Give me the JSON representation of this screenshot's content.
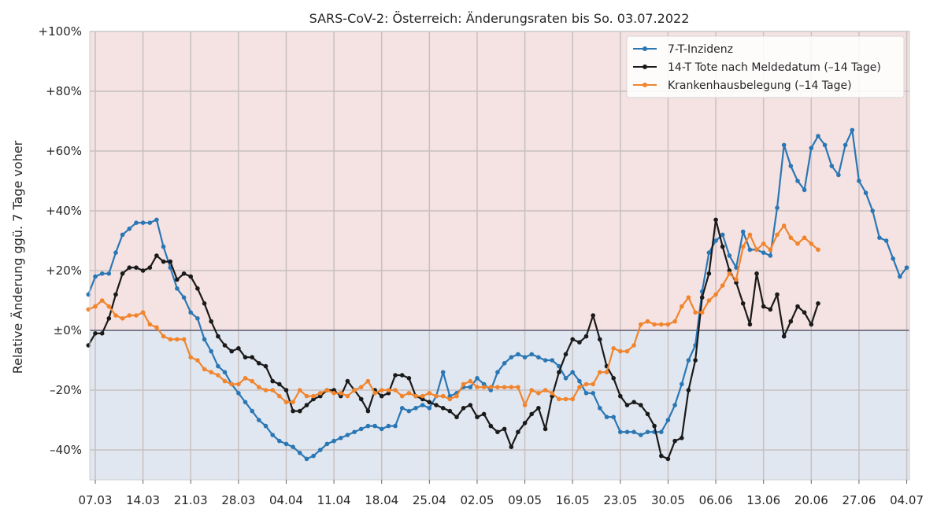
{
  "chart_data": {
    "type": "line",
    "title": "SARS-CoV-2: Österreich: Änderungsraten bis So. 03.07.2022",
    "ylabel": "Relative Änderung ggü. 7 Tage voher",
    "xlabel": "",
    "x_ticks": [
      "07.03",
      "14.03",
      "21.03",
      "28.03",
      "04.04",
      "11.04",
      "18.04",
      "25.04",
      "02.05",
      "09.05",
      "16.05",
      "23.05",
      "30.05",
      "06.06",
      "13.06",
      "20.06",
      "27.06",
      "04.07"
    ],
    "y_ticks": [
      "+100%",
      "+80%",
      "+60%",
      "+40%",
      "+20%",
      "±0%",
      "–20%",
      "–40%"
    ],
    "y_tick_values": [
      100,
      80,
      60,
      40,
      20,
      0,
      -20,
      -40
    ],
    "ylim": [
      -50,
      100
    ],
    "x_start_label": "06.03",
    "legend_position": "top-right",
    "grid": true,
    "background": {
      "positive": "#f5e2e2",
      "negative": "#e1e7f0",
      "zero_line": "#7c7c8a"
    },
    "series": [
      {
        "name": "7-T-Inzidenz",
        "color": "#2a77b4",
        "values": [
          12,
          18,
          19,
          19,
          26,
          32,
          34,
          36,
          36,
          36,
          37,
          28,
          21,
          14,
          11,
          6,
          4,
          -3,
          -7,
          -12,
          -14,
          -18,
          -21,
          -24,
          -27,
          -30,
          -32,
          -35,
          -37,
          -38,
          -39,
          -41,
          -43,
          -42,
          -40,
          -38,
          -37,
          -36,
          -35,
          -34,
          -33,
          -32,
          -32,
          -33,
          -32,
          -32,
          -26,
          -27,
          -26,
          -25,
          -26,
          -22,
          -14,
          -22,
          -21,
          -19,
          -19,
          -16,
          -18,
          -20,
          -14,
          -11,
          -9,
          -8,
          -9,
          -8,
          -9,
          -10,
          -10,
          -12,
          -16,
          -14,
          -17,
          -21,
          -21,
          -26,
          -29,
          -29,
          -34,
          -34,
          -34,
          -35,
          -34,
          -34,
          -34,
          -30,
          -25,
          -18,
          -10,
          -5,
          13,
          26,
          30,
          32,
          25,
          21,
          33,
          27,
          27,
          26,
          25,
          41,
          62,
          55,
          50,
          47,
          61,
          65,
          62,
          55,
          52,
          62,
          67,
          50,
          46,
          40,
          31,
          30,
          24,
          18,
          21
        ]
      },
      {
        "name": "14-T Tote nach Meldedatum (–14 Tage)",
        "color": "#1a1a1a",
        "values": [
          -5,
          -1,
          -1,
          4,
          12,
          19,
          21,
          21,
          20,
          21,
          25,
          23,
          23,
          17,
          19,
          18,
          14,
          9,
          3,
          -2,
          -5,
          -7,
          -6,
          -9,
          -9,
          -11,
          -12,
          -17,
          -18,
          -20,
          -27,
          -27,
          -25,
          -23,
          -22,
          -20,
          -20,
          -22,
          -17,
          -20,
          -23,
          -27,
          -20,
          -22,
          -21,
          -15,
          -15,
          -16,
          -22,
          -23,
          -24,
          -25,
          -26,
          -27,
          -29,
          -26,
          -25,
          -29,
          -28,
          -32,
          -34,
          -33,
          -39,
          -34,
          -31,
          -28,
          -26,
          -33,
          -22,
          -14,
          -8,
          -3,
          -4,
          -2,
          5,
          -3,
          -12,
          -16,
          -22,
          -25,
          -24,
          -25,
          -28,
          -32,
          -42,
          -43,
          -37,
          -36,
          -20,
          -10,
          11,
          19,
          37,
          28,
          20,
          16,
          9,
          2,
          19,
          8,
          7,
          12,
          -2,
          3,
          8,
          6,
          2,
          9
        ],
        "x_offset": 0
      },
      {
        "name": "Krankenhausbelegung (–14 Tage)",
        "color": "#f0852d",
        "values": [
          7,
          8,
          10,
          8,
          5,
          4,
          5,
          5,
          6,
          2,
          1,
          -2,
          -3,
          -3,
          -3,
          -9,
          -10,
          -13,
          -14,
          -15,
          -17,
          -18,
          -18,
          -16,
          -17,
          -19,
          -20,
          -20,
          -22,
          -24,
          -24,
          -20,
          -22,
          -22,
          -21,
          -20,
          -21,
          -21,
          -22,
          -20,
          -19,
          -17,
          -21,
          -20,
          -20,
          -20,
          -22,
          -21,
          -22,
          -22,
          -21,
          -22,
          -22,
          -23,
          -22,
          -18,
          -17,
          -19,
          -19,
          -19,
          -19,
          -19,
          -19,
          -19,
          -25,
          -20,
          -21,
          -20,
          -21,
          -23,
          -23,
          -23,
          -19,
          -18,
          -18,
          -14,
          -14,
          -6,
          -7,
          -7,
          -5,
          2,
          3,
          2,
          2,
          2,
          3,
          8,
          11,
          6,
          6,
          10,
          12,
          15,
          19,
          17,
          28,
          32,
          27,
          29,
          27,
          32,
          35,
          31,
          29,
          31,
          29,
          27
        ]
      }
    ]
  }
}
